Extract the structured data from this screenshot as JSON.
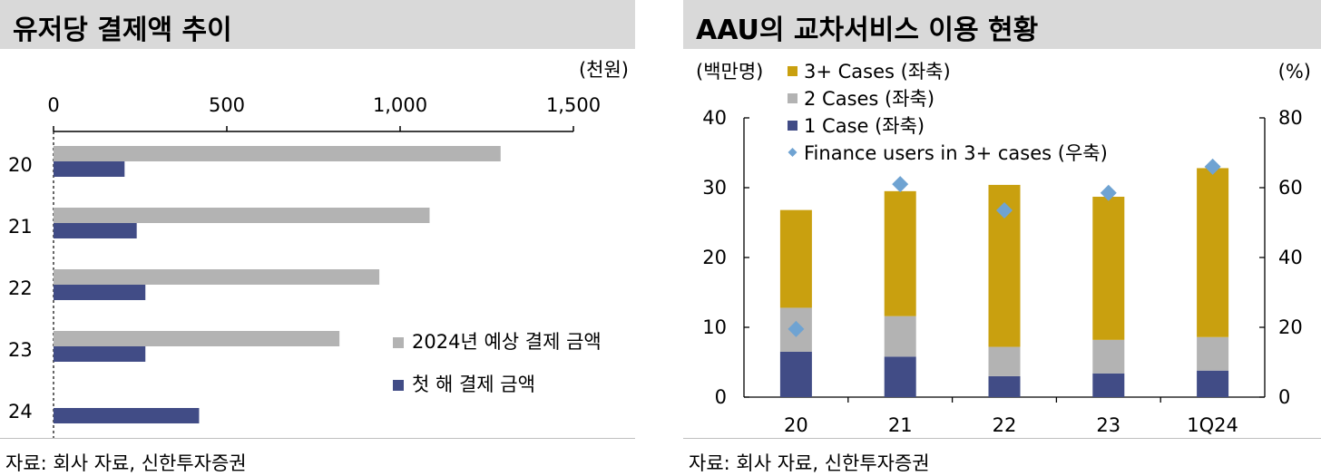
{
  "left": {
    "title": "유저당 결제액 추이",
    "source": "자료: 회사 자료, 신한투자증권"
  },
  "right": {
    "title": "AAU의 교차서비스 이용 현황",
    "source": "자료: 회사 자료, 신한투자증권"
  },
  "chart_data": [
    {
      "type": "bar",
      "orientation": "horizontal",
      "title": "유저당 결제액 추이",
      "unit": "(천원)",
      "categories": [
        "20",
        "21",
        "22",
        "23",
        "24"
      ],
      "x_ticks": [
        "0",
        "500",
        "1,000",
        "1,500"
      ],
      "xlim": [
        0,
        1500
      ],
      "series": [
        {
          "name": "2024년 예상 결제 금액",
          "color": "#b3b3b3",
          "values": [
            1290,
            1085,
            940,
            825,
            null
          ]
        },
        {
          "name": "첫 해 결제 금액",
          "color": "#414c86",
          "values": [
            205,
            240,
            265,
            265,
            420
          ]
        }
      ],
      "legend_position": "right"
    },
    {
      "type": "bar",
      "stacked": true,
      "title": "AAU의 교차서비스 이용 현황",
      "left_unit": "(백만명)",
      "right_unit": "(%)",
      "categories": [
        "20",
        "21",
        "22",
        "23",
        "1Q24"
      ],
      "ylim": [
        0,
        40
      ],
      "y_ticks": [
        "0",
        "10",
        "20",
        "30",
        "40"
      ],
      "y2lim": [
        0,
        80
      ],
      "y2_ticks": [
        "0",
        "20",
        "40",
        "60",
        "80"
      ],
      "series": [
        {
          "name": "1 Case (좌축)",
          "color": "#414c86",
          "values": [
            6.5,
            5.8,
            3.0,
            3.4,
            3.8
          ]
        },
        {
          "name": "2 Cases (좌축)",
          "color": "#b3b3b3",
          "values": [
            6.3,
            5.8,
            4.2,
            4.8,
            4.8
          ]
        },
        {
          "name": "3+ Cases (좌축)",
          "color": "#c9a00f",
          "values": [
            14.0,
            17.9,
            23.2,
            20.5,
            24.2
          ]
        }
      ],
      "line_series": {
        "name": "Finance users in 3+ cases (우축)",
        "color": "#6fa3d2",
        "marker": "diamond",
        "axis": "right",
        "values": [
          19.5,
          61,
          53.5,
          58.5,
          66
        ]
      },
      "legend_position": "top-left"
    }
  ]
}
